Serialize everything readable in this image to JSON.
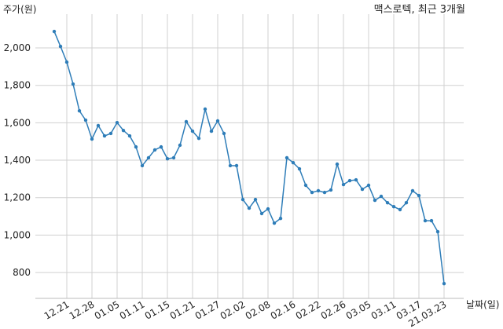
{
  "chart_data": {
    "type": "line",
    "title": "맥스로텍, 최근 3개월",
    "y_label": "주가(원)",
    "x_label": "날짜(일)",
    "categories": [
      null,
      null,
      "12.21",
      null,
      null,
      null,
      "12.28",
      null,
      null,
      null,
      "01.05",
      null,
      null,
      null,
      "01.11",
      null,
      null,
      null,
      "01.15",
      null,
      null,
      null,
      "01.21",
      null,
      null,
      null,
      "01.27",
      null,
      null,
      null,
      "02.02",
      null,
      null,
      null,
      "02.08",
      null,
      null,
      null,
      "02.16",
      null,
      null,
      null,
      "02.22",
      null,
      null,
      null,
      "02.26",
      null,
      null,
      null,
      "03.05",
      null,
      null,
      null,
      "03.11",
      null,
      null,
      null,
      "03.17",
      null,
      null,
      null,
      "21.03.23"
    ],
    "series": [
      {
        "name": "주가",
        "color": "#2e7db8",
        "values": [
          2088,
          2008,
          1924,
          1807,
          1664,
          1614,
          1513,
          1585,
          1530,
          1543,
          1601,
          1559,
          1530,
          1471,
          1371,
          1413,
          1455,
          1471,
          1408,
          1413,
          1480,
          1606,
          1555,
          1517,
          1673,
          1555,
          1610,
          1543,
          1371,
          1371,
          1190,
          1144,
          1190,
          1115,
          1140,
          1064,
          1089,
          1413,
          1387,
          1354,
          1266,
          1228,
          1237,
          1228,
          1241,
          1379,
          1270,
          1291,
          1295,
          1245,
          1266,
          1186,
          1207,
          1173,
          1152,
          1136,
          1173,
          1237,
          1211,
          1077,
          1077,
          1018,
          741
        ]
      }
    ],
    "ylim": [
      662,
      2214
    ],
    "yticks": [
      {
        "value": 800,
        "label": "800"
      },
      {
        "value": 1000,
        "label": "1,000"
      },
      {
        "value": 1200,
        "label": "1,200"
      },
      {
        "value": 1400,
        "label": "1,400"
      },
      {
        "value": 1600,
        "label": "1,600"
      },
      {
        "value": 1800,
        "label": "1,800"
      },
      {
        "value": 2000,
        "label": "2,000"
      }
    ],
    "grid": true
  }
}
